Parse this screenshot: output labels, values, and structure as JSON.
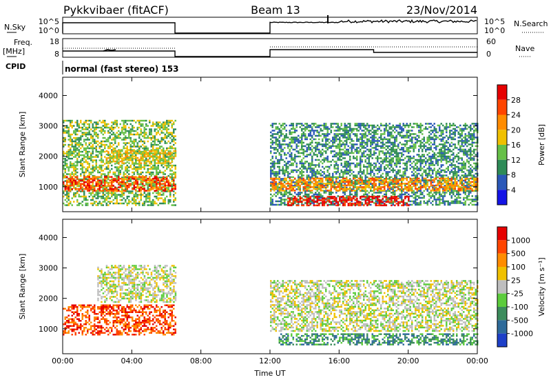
{
  "header": {
    "station": "Pykkvibaer (fitACF)",
    "beam": "Beam 13",
    "date": "23/Nov/2014"
  },
  "top_panels": {
    "nsky_label": "N.Sky",
    "nsky_ticks": [
      "10^5",
      "10^0"
    ],
    "nsearch_label": "N.Search",
    "nsearch_ticks": [
      "10^5",
      "10^0"
    ],
    "freq_label": [
      "Freq.",
      "[MHz]"
    ],
    "freq_ticks": [
      "18",
      "8"
    ],
    "nave_label": "Nave",
    "nave_ticks": [
      "60",
      "0"
    ],
    "cpid_label": "CPID",
    "cpid_text": "normal (fast stereo) 153"
  },
  "chart_data": [
    {
      "type": "heatmap",
      "title": "",
      "ylabel": "Slant Range [km]",
      "xlabel": "",
      "ylim": [
        180,
        4600
      ],
      "yticks": [
        "1000",
        "2000",
        "3000",
        "4000"
      ],
      "colorbar": {
        "label": "Power [dB]",
        "range": [
          0,
          32
        ],
        "ticks": [
          "4",
          "8",
          "12",
          "16",
          "20",
          "24",
          "28"
        ],
        "colors": [
          "#1414e6",
          "#2a58b8",
          "#2e8b57",
          "#66c047",
          "#f0c000",
          "#ff8c00",
          "#ff4500",
          "#e60000"
        ]
      },
      "regions": [
        {
          "x": [
            0.0,
            6.5
          ],
          "y": [
            400,
            3200
          ],
          "level": 3
        },
        {
          "x": [
            0.0,
            6.5
          ],
          "y": [
            850,
            1350
          ],
          "level": 6
        },
        {
          "x": [
            2.5,
            6.5
          ],
          "y": [
            1800,
            2200
          ],
          "level": 4
        },
        {
          "x": [
            12.0,
            24.0
          ],
          "y": [
            400,
            3100
          ],
          "level": 2
        },
        {
          "x": [
            12.0,
            24.0
          ],
          "y": [
            900,
            1300
          ],
          "level": 5
        },
        {
          "x": [
            13.0,
            20.0
          ],
          "y": [
            400,
            700
          ],
          "level": 7
        }
      ]
    },
    {
      "type": "heatmap",
      "title": "",
      "ylabel": "Slant Range [km]",
      "xlabel": "Time UT",
      "ylim": [
        180,
        4600
      ],
      "yticks": [
        "1000",
        "2000",
        "3000",
        "4000"
      ],
      "xticks": [
        "00:00",
        "04:00",
        "08:00",
        "12:00",
        "16:00",
        "20:00",
        "00:00"
      ],
      "colorbar": {
        "label": "Velocity [m s⁻¹]",
        "range": [
          -1000,
          1000
        ],
        "ticks": [
          "1000",
          "500",
          "100",
          "25",
          "-25",
          "-100",
          "-500",
          "-1000"
        ],
        "colors": [
          "#1e40c8",
          "#2e6b9a",
          "#3c8c5c",
          "#5ccc3c",
          "#bebebe",
          "#f0c000",
          "#ff8c00",
          "#ff4500",
          "#e60000"
        ]
      },
      "regions": [
        {
          "x": [
            0.0,
            6.5
          ],
          "y": [
            800,
            1800
          ],
          "level": 7
        },
        {
          "x": [
            2.0,
            6.5
          ],
          "y": [
            1900,
            3100
          ],
          "level": 4
        },
        {
          "x": [
            12.0,
            24.0
          ],
          "y": [
            900,
            2600
          ],
          "level": 4
        },
        {
          "x": [
            12.5,
            24.0
          ],
          "y": [
            500,
            850
          ],
          "level": 2
        }
      ]
    }
  ]
}
